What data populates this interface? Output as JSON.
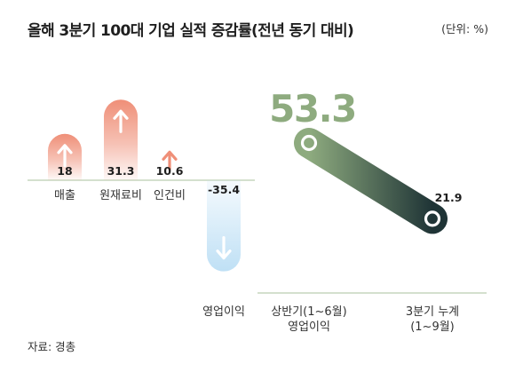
{
  "title": "올해 3분기 100대 기업 실적 증감률(전년 동기 대비)",
  "unit": "(단위: %)",
  "source": "자료: 경총",
  "colors": {
    "positive": "#ef8f78",
    "negative": "#bfe0f5",
    "slope_start": "#8eab7f",
    "slope_end": "#1f3436",
    "axis": "#a9c19d"
  },
  "chart_data": [
    {
      "type": "bar",
      "categories": [
        "매출",
        "원재료비",
        "인건비",
        "영업이익"
      ],
      "values": [
        18,
        31.3,
        10.6,
        -35.4
      ],
      "value_labels": [
        "18",
        "31.3",
        "10.6",
        "-35.4"
      ],
      "icons": [
        "arrow-up-icon",
        "arrow-up-icon",
        "arrow-up-icon",
        "arrow-down-icon"
      ],
      "baseline": 0
    },
    {
      "type": "line",
      "categories": [
        "상반기(1~6월)\n영업이익",
        "3분기 누계\n(1~9월)"
      ],
      "values": [
        53.3,
        21.9
      ],
      "value_labels": [
        "53.3",
        "21.9"
      ]
    }
  ]
}
